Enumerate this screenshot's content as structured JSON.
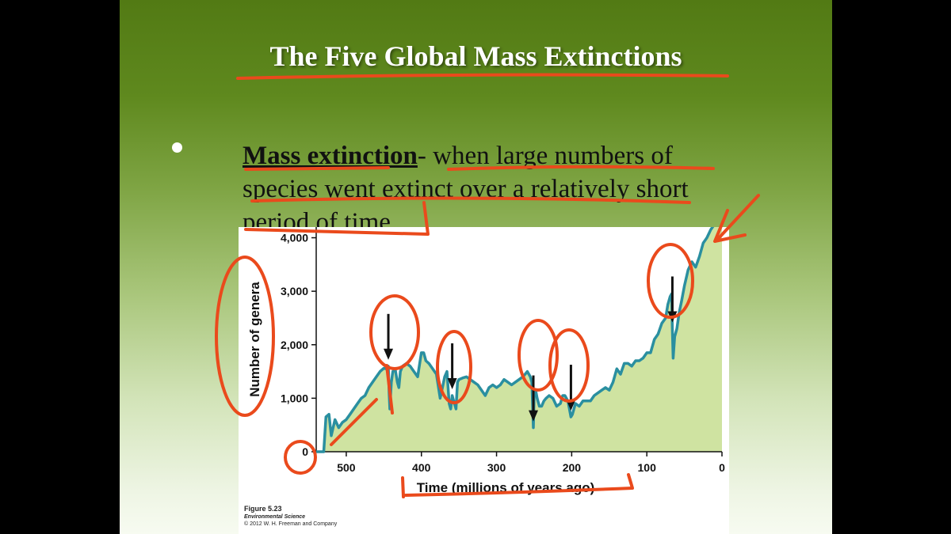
{
  "slide": {
    "title": "The Five Global Mass Extinctions",
    "bullet": {
      "term": "Mass extinction",
      "definition": "- when large numbers of species went extinct over a relatively short period of time"
    }
  },
  "figure_caption": {
    "figure": "Figure 5.23",
    "book": "Environmental Science",
    "copyright": "© 2012 W. H. Freeman and Company"
  },
  "chart_data": {
    "type": "area",
    "title": "",
    "xlabel": "Time (millions of years ago)",
    "ylabel": "Number of genera",
    "xlim": [
      540,
      0
    ],
    "ylim": [
      0,
      4200
    ],
    "x_ticks": [
      500,
      400,
      300,
      200,
      100,
      0
    ],
    "x_tick_labels": [
      "500",
      "400",
      "300",
      "200",
      "100",
      "0"
    ],
    "y_ticks": [
      0,
      1000,
      2000,
      3000,
      4000
    ],
    "y_tick_labels": [
      "0",
      "1,000",
      "2,000",
      "3,000",
      "4,000"
    ],
    "grid": false,
    "colors": {
      "line": "#2a8fa0",
      "fill": "#cfe3a1",
      "arrow": "#111111",
      "annotation": "#ea4a1c"
    },
    "mass_extinctions_ma": [
      444,
      359,
      251,
      201,
      66
    ],
    "series": [
      {
        "x": [
          540,
          530,
          527,
          523,
          520,
          515,
          510,
          505,
          500,
          495,
          490,
          485,
          480,
          475,
          470,
          465,
          460,
          455,
          450,
          447,
          444,
          443,
          442,
          440,
          438,
          435,
          432,
          430,
          428,
          425,
          420,
          415,
          410,
          405,
          400,
          397,
          394,
          390,
          385,
          380,
          375,
          372,
          369,
          366,
          363,
          361,
          359,
          357,
          354,
          352,
          350,
          345,
          340,
          335,
          330,
          325,
          320,
          315,
          310,
          305,
          300,
          295,
          290,
          285,
          280,
          275,
          270,
          265,
          262,
          259,
          255,
          253,
          251,
          250,
          248,
          246,
          243,
          240,
          237,
          234,
          230,
          225,
          220,
          215,
          212,
          209,
          205,
          203,
          201,
          199,
          197,
          195,
          190,
          185,
          180,
          175,
          170,
          165,
          160,
          155,
          150,
          145,
          140,
          135,
          130,
          125,
          120,
          115,
          110,
          105,
          100,
          95,
          90,
          85,
          80,
          75,
          72,
          69,
          67,
          66,
          65,
          63,
          60,
          57,
          54,
          50,
          45,
          40,
          35,
          30,
          25,
          20,
          15,
          10,
          5,
          0
        ],
        "y": [
          0,
          0,
          650,
          700,
          300,
          600,
          450,
          550,
          600,
          700,
          800,
          900,
          1000,
          1050,
          1200,
          1300,
          1400,
          1500,
          1560,
          1550,
          1600,
          1100,
          800,
          1300,
          1500,
          1550,
          1300,
          1200,
          1500,
          1600,
          1650,
          1600,
          1500,
          1400,
          1850,
          1850,
          1700,
          1650,
          1550,
          1450,
          1000,
          1200,
          1400,
          1500,
          900,
          800,
          1050,
          950,
          800,
          1300,
          1350,
          1380,
          1400,
          1350,
          1300,
          1250,
          1150,
          1050,
          1200,
          1250,
          1200,
          1250,
          1350,
          1300,
          1250,
          1300,
          1350,
          1400,
          1450,
          1500,
          1400,
          1300,
          450,
          1050,
          1150,
          1000,
          850,
          850,
          950,
          1000,
          1050,
          1000,
          850,
          900,
          1050,
          1050,
          950,
          800,
          650,
          700,
          800,
          900,
          850,
          950,
          950,
          950,
          1050,
          1100,
          1150,
          1200,
          1150,
          1300,
          1550,
          1450,
          1650,
          1650,
          1600,
          1700,
          1700,
          1750,
          1850,
          1850,
          2100,
          2200,
          2400,
          2500,
          2750,
          2900,
          2950,
          2300,
          1750,
          2150,
          2300,
          2600,
          2800,
          3100,
          3400,
          3550,
          3450,
          3650,
          3900,
          4000,
          4150,
          4250,
          4300,
          4300
        ]
      }
    ]
  }
}
